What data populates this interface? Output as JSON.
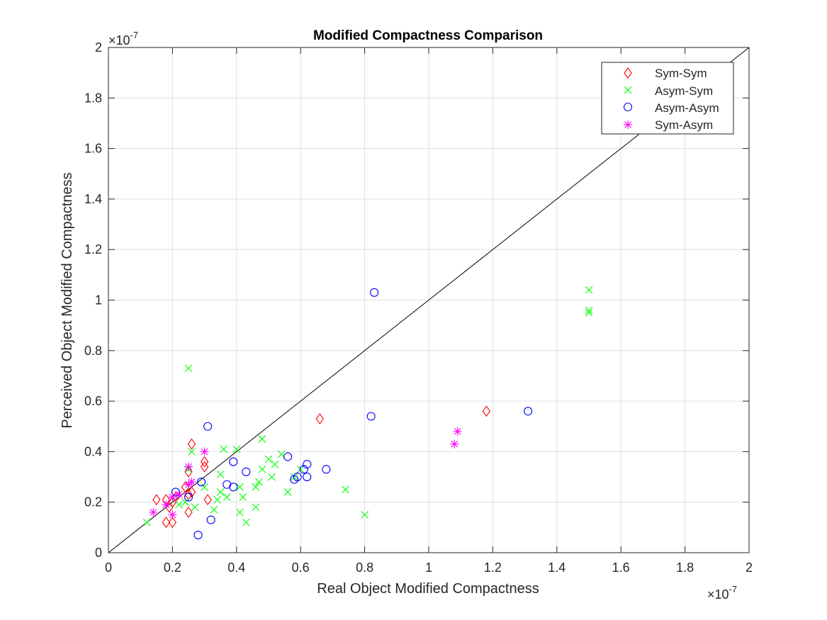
{
  "chart_data": {
    "type": "scatter",
    "title": "Modified Compactness Comparison",
    "xlabel": "Real Object Modified Compactness",
    "ylabel": "Perceived Object Modified Compactness",
    "x_exponent_label": "×10",
    "x_exponent_power": "-7",
    "y_exponent_label": "×10",
    "y_exponent_power": "-7",
    "xlim": [
      0,
      2
    ],
    "ylim": [
      0,
      2
    ],
    "xticks": [
      "0",
      "0.2",
      "0.4",
      "0.6",
      "0.8",
      "1",
      "1.2",
      "1.4",
      "1.6",
      "1.8",
      "2"
    ],
    "yticks": [
      "0",
      "0.2",
      "0.4",
      "0.6",
      "0.8",
      "1",
      "1.2",
      "1.4",
      "1.6",
      "1.8",
      "2"
    ],
    "grid": true,
    "legend_position": "top-right",
    "reference_line": {
      "x": [
        0,
        2
      ],
      "y": [
        0,
        2
      ]
    },
    "series": [
      {
        "name": "Sym-Sym",
        "marker": "diamond",
        "color": "#ff0000",
        "points": [
          [
            0.15,
            0.21
          ],
          [
            0.18,
            0.21
          ],
          [
            0.19,
            0.18
          ],
          [
            0.2,
            0.2
          ],
          [
            0.21,
            0.22
          ],
          [
            0.18,
            0.12
          ],
          [
            0.2,
            0.12
          ],
          [
            0.24,
            0.26
          ],
          [
            0.25,
            0.23
          ],
          [
            0.26,
            0.24
          ],
          [
            0.25,
            0.16
          ],
          [
            0.26,
            0.43
          ],
          [
            0.25,
            0.32
          ],
          [
            0.3,
            0.36
          ],
          [
            0.3,
            0.34
          ],
          [
            0.31,
            0.21
          ],
          [
            0.66,
            0.53
          ],
          [
            1.18,
            0.56
          ]
        ]
      },
      {
        "name": "Asym-Sym",
        "marker": "x",
        "color": "#00ff00",
        "points": [
          [
            0.12,
            0.12
          ],
          [
            0.25,
            0.73
          ],
          [
            0.26,
            0.4
          ],
          [
            0.25,
            0.33
          ],
          [
            0.24,
            0.2
          ],
          [
            0.22,
            0.19
          ],
          [
            0.27,
            0.18
          ],
          [
            0.3,
            0.26
          ],
          [
            0.33,
            0.17
          ],
          [
            0.34,
            0.21
          ],
          [
            0.35,
            0.31
          ],
          [
            0.35,
            0.24
          ],
          [
            0.36,
            0.41
          ],
          [
            0.37,
            0.22
          ],
          [
            0.4,
            0.41
          ],
          [
            0.41,
            0.26
          ],
          [
            0.41,
            0.16
          ],
          [
            0.42,
            0.22
          ],
          [
            0.43,
            0.12
          ],
          [
            0.46,
            0.26
          ],
          [
            0.46,
            0.18
          ],
          [
            0.47,
            0.28
          ],
          [
            0.48,
            0.45
          ],
          [
            0.48,
            0.33
          ],
          [
            0.5,
            0.37
          ],
          [
            0.51,
            0.3
          ],
          [
            0.52,
            0.35
          ],
          [
            0.54,
            0.39
          ],
          [
            0.56,
            0.24
          ],
          [
            0.58,
            0.3
          ],
          [
            0.6,
            0.33
          ],
          [
            0.74,
            0.25
          ],
          [
            0.8,
            0.15
          ],
          [
            1.5,
            1.04
          ],
          [
            1.5,
            0.96
          ],
          [
            1.5,
            0.95
          ]
        ]
      },
      {
        "name": "Asym-Asym",
        "marker": "circle",
        "color": "#0000ff",
        "points": [
          [
            0.21,
            0.24
          ],
          [
            0.25,
            0.22
          ],
          [
            0.29,
            0.28
          ],
          [
            0.28,
            0.07
          ],
          [
            0.31,
            0.5
          ],
          [
            0.32,
            0.13
          ],
          [
            0.37,
            0.27
          ],
          [
            0.39,
            0.26
          ],
          [
            0.39,
            0.36
          ],
          [
            0.43,
            0.32
          ],
          [
            0.56,
            0.38
          ],
          [
            0.58,
            0.29
          ],
          [
            0.59,
            0.3
          ],
          [
            0.61,
            0.33
          ],
          [
            0.62,
            0.3
          ],
          [
            0.62,
            0.35
          ],
          [
            0.68,
            0.33
          ],
          [
            0.82,
            0.54
          ],
          [
            0.83,
            1.03
          ],
          [
            1.31,
            0.56
          ]
        ]
      },
      {
        "name": "Sym-Asym",
        "marker": "asterisk",
        "color": "#ff00ff",
        "points": [
          [
            0.14,
            0.16
          ],
          [
            0.18,
            0.19
          ],
          [
            0.2,
            0.22
          ],
          [
            0.2,
            0.15
          ],
          [
            0.22,
            0.23
          ],
          [
            0.25,
            0.34
          ],
          [
            0.25,
            0.27
          ],
          [
            0.26,
            0.28
          ],
          [
            0.3,
            0.4
          ],
          [
            1.08,
            0.43
          ],
          [
            1.09,
            0.48
          ]
        ]
      }
    ]
  }
}
